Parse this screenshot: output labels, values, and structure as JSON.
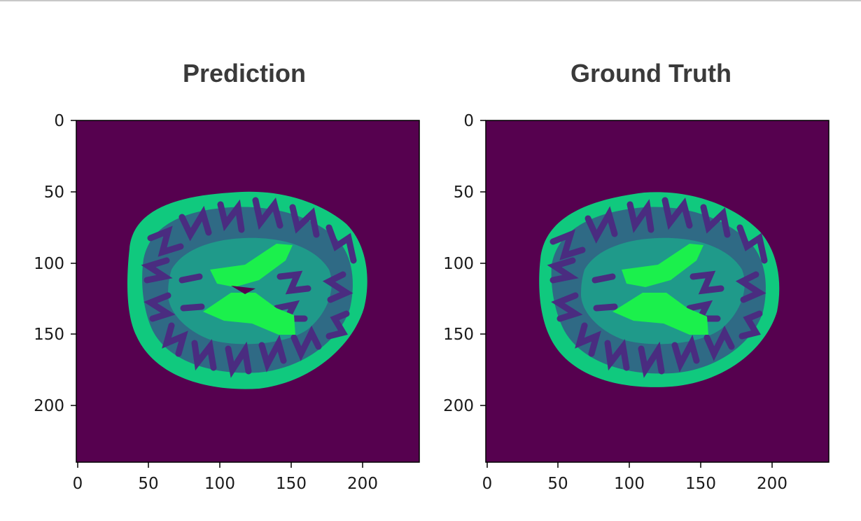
{
  "panels": [
    {
      "title": "Prediction",
      "x_ticks": [
        "0",
        "50",
        "100",
        "150",
        "200"
      ],
      "y_ticks": [
        "0",
        "50",
        "100",
        "150",
        "200"
      ]
    },
    {
      "title": "Ground Truth",
      "x_ticks": [
        "0",
        "50",
        "100",
        "150",
        "200"
      ],
      "y_ticks": [
        "0",
        "50",
        "100",
        "150",
        "200"
      ]
    }
  ],
  "colors": {
    "background": "#56014f",
    "csf_ventricle": "#1bf04c",
    "gray_matter": "#2f6a85",
    "white_matter_outer": "#10c97e",
    "mid_band": "#1f9a8a",
    "sulci": "#4a2c80"
  }
}
